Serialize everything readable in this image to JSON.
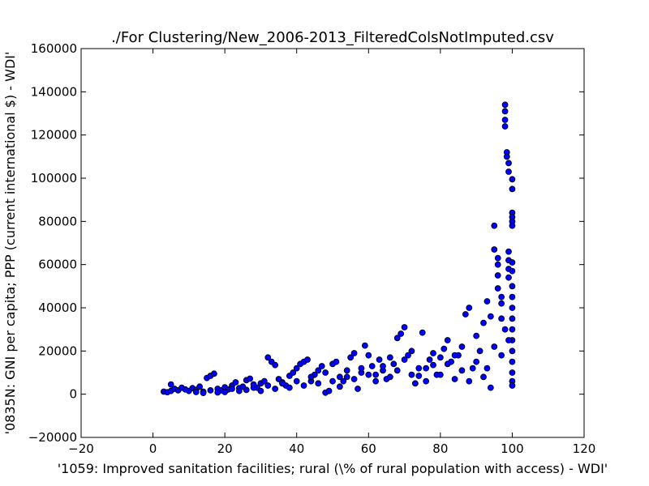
{
  "chart_data": {
    "type": "scatter",
    "title": "./For Clustering/New_2006-2013_FilteredColsNotImputed.csv",
    "xlabel": "'1059: Improved sanitation facilities; rural  (\\% of rural population with access) - WDI'",
    "ylabel": "'0835N: GNI per capita; PPP  (current international $) - WDI'",
    "xlim": [
      -20,
      120
    ],
    "ylim": [
      -20000,
      160000
    ],
    "xticks": [
      "−20",
      "0",
      "20",
      "40",
      "60",
      "80",
      "100",
      "120"
    ],
    "yticks": [
      "−20000",
      "0",
      "20000",
      "40000",
      "60000",
      "80000",
      "100000",
      "120000",
      "140000",
      "160000"
    ],
    "grid": false,
    "marker_color": "#0000ff",
    "marker_edge": "#000000",
    "points": [
      [
        3,
        1200
      ],
      [
        4,
        900
      ],
      [
        5,
        1500
      ],
      [
        5,
        4500
      ],
      [
        6,
        2500
      ],
      [
        7,
        1800
      ],
      [
        8,
        3000
      ],
      [
        9,
        2200
      ],
      [
        10,
        1500
      ],
      [
        11,
        2800
      ],
      [
        12,
        2000
      ],
      [
        13,
        3500
      ],
      [
        14,
        1200
      ],
      [
        15,
        7500
      ],
      [
        16,
        8500
      ],
      [
        17,
        9500
      ],
      [
        18,
        2500
      ],
      [
        19,
        1800
      ],
      [
        20,
        3200
      ],
      [
        21,
        2200
      ],
      [
        22,
        4000
      ],
      [
        23,
        5500
      ],
      [
        24,
        2800
      ],
      [
        25,
        3500
      ],
      [
        26,
        6500
      ],
      [
        27,
        7200
      ],
      [
        28,
        4500
      ],
      [
        29,
        3000
      ],
      [
        30,
        5000
      ],
      [
        31,
        6000
      ],
      [
        32,
        17000
      ],
      [
        33,
        15000
      ],
      [
        34,
        13500
      ],
      [
        35,
        7000
      ],
      [
        36,
        5500
      ],
      [
        37,
        4000
      ],
      [
        38,
        8500
      ],
      [
        39,
        10000
      ],
      [
        40,
        12000
      ],
      [
        41,
        14000
      ],
      [
        42,
        15000
      ],
      [
        43,
        16000
      ],
      [
        44,
        6000
      ],
      [
        45,
        9000
      ],
      [
        46,
        11000
      ],
      [
        47,
        13000
      ],
      [
        48,
        700
      ],
      [
        49,
        1500
      ],
      [
        50,
        14000
      ],
      [
        51,
        15000
      ],
      [
        52,
        3500
      ],
      [
        53,
        6000
      ],
      [
        54,
        8000
      ],
      [
        55,
        17000
      ],
      [
        56,
        19000
      ],
      [
        57,
        2500
      ],
      [
        58,
        10000
      ],
      [
        59,
        22500
      ],
      [
        60,
        18000
      ],
      [
        61,
        13000
      ],
      [
        62,
        9000
      ],
      [
        63,
        16000
      ],
      [
        64,
        11000
      ],
      [
        65,
        7000
      ],
      [
        66,
        17000
      ],
      [
        67,
        14000
      ],
      [
        68,
        26000
      ],
      [
        69,
        28000
      ],
      [
        70,
        31000
      ],
      [
        71,
        18000
      ],
      [
        72,
        20000
      ],
      [
        73,
        5000
      ],
      [
        74,
        8500
      ],
      [
        75,
        28500
      ],
      [
        76,
        12000
      ],
      [
        77,
        16000
      ],
      [
        78,
        13500
      ],
      [
        79,
        9000
      ],
      [
        80,
        17000
      ],
      [
        81,
        21000
      ],
      [
        82,
        25000
      ],
      [
        83,
        15000
      ],
      [
        84,
        7000
      ],
      [
        85,
        18000
      ],
      [
        86,
        22000
      ],
      [
        87,
        37000
      ],
      [
        88,
        40000
      ],
      [
        89,
        12000
      ],
      [
        90,
        27000
      ],
      [
        91,
        20000
      ],
      [
        92,
        33000
      ],
      [
        93,
        43000
      ],
      [
        94,
        3000
      ],
      [
        95,
        78000
      ],
      [
        95,
        67000
      ],
      [
        96,
        55000
      ],
      [
        96,
        49000
      ],
      [
        97,
        35000
      ],
      [
        97,
        42000
      ],
      [
        98,
        134000
      ],
      [
        98,
        131000
      ],
      [
        98,
        127000
      ],
      [
        98,
        124000
      ],
      [
        98.5,
        112000
      ],
      [
        98.5,
        110000
      ],
      [
        99,
        107000
      ],
      [
        99,
        103000
      ],
      [
        99,
        66000
      ],
      [
        99,
        62000
      ],
      [
        99,
        58000
      ],
      [
        99,
        54000
      ],
      [
        100,
        99500
      ],
      [
        100,
        95000
      ],
      [
        100,
        84000
      ],
      [
        100,
        82000
      ],
      [
        100,
        80000
      ],
      [
        100,
        78000
      ],
      [
        100,
        61000
      ],
      [
        100,
        57000
      ],
      [
        100,
        50000
      ],
      [
        100,
        45000
      ],
      [
        100,
        40000
      ],
      [
        100,
        35000
      ],
      [
        100,
        30000
      ],
      [
        100,
        25000
      ],
      [
        100,
        20000
      ],
      [
        100,
        15000
      ],
      [
        100,
        10000
      ],
      [
        100,
        6000
      ],
      [
        100,
        4000
      ],
      [
        96,
        63000
      ],
      [
        96,
        60000
      ],
      [
        97,
        45000
      ],
      [
        98,
        30000
      ],
      [
        99,
        25000
      ],
      [
        97,
        18000
      ],
      [
        95,
        22000
      ],
      [
        93,
        12000
      ],
      [
        94,
        36000
      ],
      [
        92,
        8000
      ],
      [
        88,
        6000
      ],
      [
        90,
        15000
      ],
      [
        86,
        11000
      ],
      [
        84,
        18000
      ],
      [
        82,
        14000
      ],
      [
        80,
        9000
      ],
      [
        78,
        19000
      ],
      [
        76,
        6000
      ],
      [
        74,
        12000
      ],
      [
        72,
        9000
      ],
      [
        70,
        16000
      ],
      [
        68,
        11000
      ],
      [
        66,
        8000
      ],
      [
        64,
        13000
      ],
      [
        62,
        6000
      ],
      [
        60,
        9000
      ],
      [
        58,
        12000
      ],
      [
        56,
        7000
      ],
      [
        54,
        11000
      ],
      [
        52,
        8000
      ],
      [
        50,
        6000
      ],
      [
        48,
        10000
      ],
      [
        46,
        5000
      ],
      [
        44,
        8000
      ],
      [
        42,
        4000
      ],
      [
        40,
        6000
      ],
      [
        38,
        3000
      ],
      [
        36,
        5000
      ],
      [
        34,
        2500
      ],
      [
        32,
        4000
      ],
      [
        30,
        1500
      ],
      [
        28,
        3000
      ],
      [
        26,
        2000
      ],
      [
        24,
        1500
      ],
      [
        22,
        2500
      ],
      [
        20,
        1000
      ],
      [
        18,
        800
      ],
      [
        16,
        1800
      ],
      [
        14,
        600
      ],
      [
        12,
        1000
      ]
    ]
  }
}
